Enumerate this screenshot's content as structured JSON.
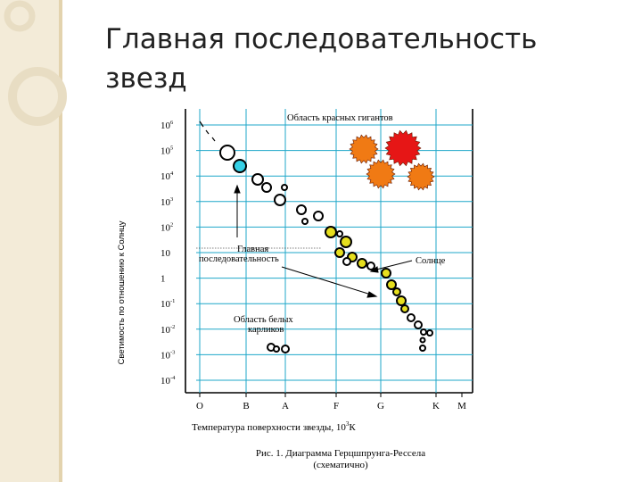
{
  "slide": {
    "title_line1": "Главная последовательность",
    "title_line2": "звезд"
  },
  "colors": {
    "left_band": "#f3ebd8",
    "left_band_stripe": "#e3d3ae",
    "ring": "#e8ddc3",
    "grid": "#1fa7c9",
    "blue_star": "#35d0e6",
    "yellow_star": "#e6df1e",
    "orange_star": "#f07a14",
    "red_star": "#e61616"
  },
  "diagram": {
    "y_axis_label": "Светимость по отношению к Солнцу",
    "x_axis_label": "Температура поверхности звезды, 10",
    "x_axis_label_exp": "3",
    "x_axis_label_unit": "К",
    "y_ticks": [
      {
        "base": "10",
        "exp": "6"
      },
      {
        "base": "10",
        "exp": "5"
      },
      {
        "base": "10",
        "exp": "4"
      },
      {
        "base": "10",
        "exp": "3"
      },
      {
        "base": "10",
        "exp": "2"
      },
      {
        "base": "10",
        "exp": ""
      },
      {
        "base": "1",
        "exp": ""
      },
      {
        "base": "10",
        "exp": "-1"
      },
      {
        "base": "10",
        "exp": "-2"
      },
      {
        "base": "10",
        "exp": "-3"
      },
      {
        "base": "10",
        "exp": "-4"
      }
    ],
    "x_ticks": [
      "O",
      "B",
      "A",
      "F",
      "G",
      "K",
      "M"
    ],
    "label_red_giants": "Область красных гигантов",
    "label_main_sequence_1": "Главная",
    "label_main_sequence_2": "последовательность",
    "label_sun": "Солнце",
    "label_white_dwarfs_1": "Область белых",
    "label_white_dwarfs_2": "карликов",
    "caption_1": "Рис. 1. Диаграмма Герцшпрунга-Рессела",
    "caption_2": "(схематично)"
  }
}
